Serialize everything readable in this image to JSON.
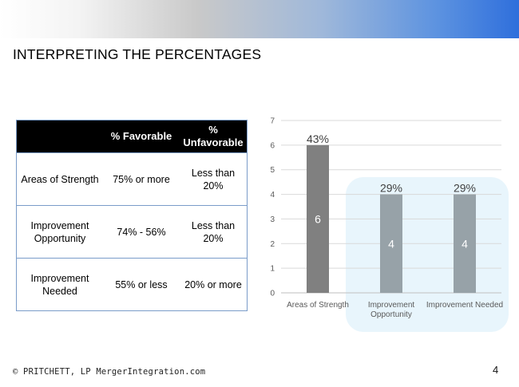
{
  "slide": {
    "title": "INTERPRETING THE PERCENTAGES",
    "footer": "© PRITCHETT, LP  MergerIntegration.com",
    "page_number": "4"
  },
  "table": {
    "headers": [
      "",
      "% Favorable",
      "% Unfavorable"
    ],
    "rows": [
      {
        "label": "Areas of Strength",
        "favorable": "75% or more",
        "unfavorable": "Less than 20%"
      },
      {
        "label": "Improvement Opportunity",
        "favorable": "74% - 56%",
        "unfavorable": "Less than 20%"
      },
      {
        "label": "Improvement Needed",
        "favorable": "55% or less",
        "unfavorable": "20% or more"
      }
    ]
  },
  "chart_data": {
    "type": "bar",
    "categories": [
      "Areas of Strength",
      "Improvement Opportunity",
      "Improvement Needed"
    ],
    "values": [
      6,
      4,
      4
    ],
    "percent_labels": [
      "43%",
      "29%",
      "29%"
    ],
    "ylim": [
      0,
      7
    ],
    "yticks": [
      "0",
      "1",
      "2",
      "3",
      "4",
      "5",
      "6",
      "7"
    ],
    "grid": true,
    "colors": [
      "#808080",
      "#97a2a8",
      "#97a2a8"
    ],
    "highlight_color": "#e8f5fc",
    "highlighted_categories": [
      "Improvement Opportunity",
      "Improvement Needed"
    ]
  }
}
